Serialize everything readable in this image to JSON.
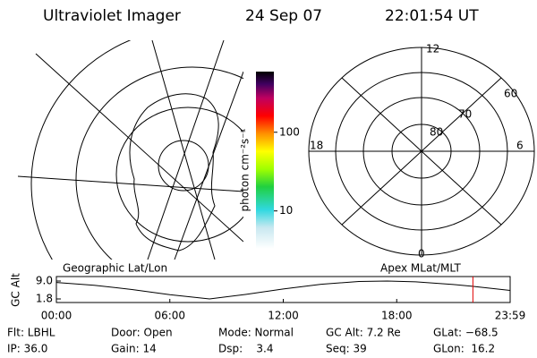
{
  "header": {
    "instrument": "Ultraviolet Imager",
    "date": "24 Sep 07",
    "time": "22:01:54 UT"
  },
  "polar_plot": {
    "labels": [
      "12",
      "18",
      "6",
      "0",
      "60",
      "70",
      "80"
    ]
  },
  "colorbar": {
    "unit": "photon cm⁻²s⁻¹",
    "ticks": [
      10,
      100
    ],
    "range": [
      3.3,
      590
    ],
    "log": true
  },
  "altitude_plot": {
    "axis_label": "GC Alt",
    "left_title": "Geographic Lat/Lon",
    "right_title": "Apex MLat/MLT",
    "x": [
      0,
      2,
      4,
      6,
      8.1,
      10,
      12,
      14,
      16,
      17.5,
      19,
      21,
      22,
      24
    ],
    "values": [
      8.4,
      7.3,
      5.6,
      3.5,
      1.8,
      3.6,
      5.8,
      7.7,
      8.8,
      9.0,
      8.7,
      7.6,
      6.9,
      5.2
    ],
    "xlim": [
      0,
      24
    ],
    "ylim": [
      0.36,
      10.8
    ],
    "xticks": [
      {
        "value": 0,
        "label": "00:00"
      },
      {
        "value": 6,
        "label": "06:00"
      },
      {
        "value": 12,
        "label": "12:00"
      },
      {
        "value": 18,
        "label": "18:00"
      },
      {
        "value": 24,
        "label": "23:59"
      }
    ],
    "yticks": [
      {
        "value": 9,
        "label": "9.0"
      },
      {
        "value": 1.8,
        "label": "1.8"
      }
    ],
    "marker_time": 22.03,
    "marker_color": "#e00000"
  },
  "footer": [
    [
      "Flt: LBHL",
      "IP: 36.0"
    ],
    [
      "Door: Open",
      "Gain: 14"
    ],
    [
      "Mode: Normal",
      "Dsp:    3.4"
    ],
    [
      "GC Alt: 7.2 Re",
      "Seq: 39"
    ],
    [
      "GLat: −68.5",
      "GLon:  16.2"
    ]
  ]
}
